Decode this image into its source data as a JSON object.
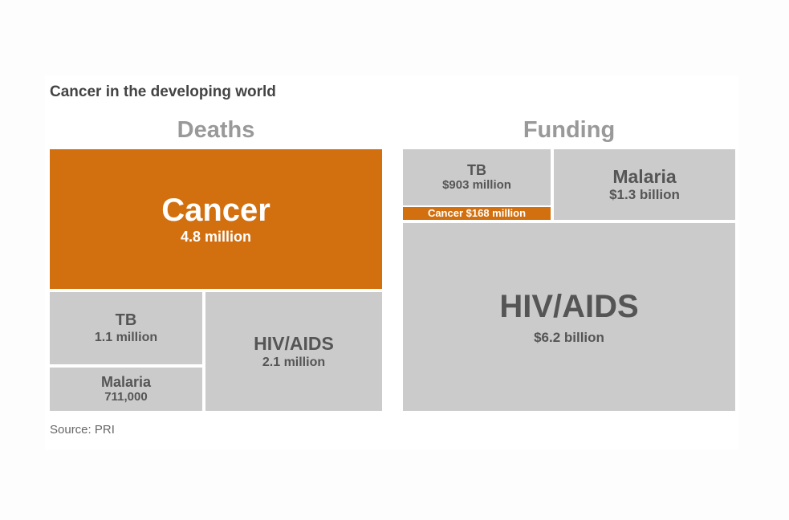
{
  "chart_data": {
    "type": "treemap",
    "title": "Cancer in the developing world",
    "source": "Source: PRI",
    "groups": [
      {
        "name": "Deaths",
        "items": [
          {
            "label": "Cancer",
            "value_text": "4.8 million",
            "value": 4800000,
            "highlight": true
          },
          {
            "label": "TB",
            "value_text": "1.1 million",
            "value": 1100000,
            "highlight": false
          },
          {
            "label": "Malaria",
            "value_text": "711,000",
            "value": 711000,
            "highlight": false
          },
          {
            "label": "HIV/AIDS",
            "value_text": "2.1 million",
            "value": 2100000,
            "highlight": false
          }
        ]
      },
      {
        "name": "Funding",
        "items": [
          {
            "label": "TB",
            "value_text": "$903 million",
            "value": 903000000,
            "highlight": false
          },
          {
            "label": "Cancer $168 million",
            "value_text": "",
            "value": 168000000,
            "highlight": true
          },
          {
            "label": "Malaria",
            "value_text": "$1.3 billion",
            "value": 1300000000,
            "highlight": false
          },
          {
            "label": "HIV/AIDS",
            "value_text": "$6.2 billion",
            "value": 6200000000,
            "highlight": false
          }
        ]
      }
    ],
    "colors": {
      "highlight": "#d2700f",
      "default": "#cbcbcb"
    }
  }
}
